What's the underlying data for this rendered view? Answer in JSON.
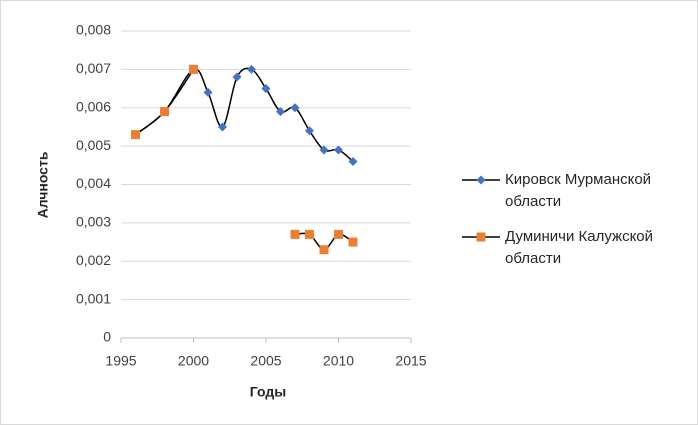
{
  "chart_data": {
    "type": "scatter",
    "xlabel": "Годы",
    "ylabel": "Алчность",
    "xlim": [
      1995,
      2015
    ],
    "xticks": [
      1995,
      2000,
      2005,
      2010,
      2015
    ],
    "ylim": [
      0,
      0.008
    ],
    "yticks": [
      0,
      {
        "value": 0.001,
        "label": "0,001"
      },
      {
        "value": 0.002,
        "label": "0,002"
      },
      {
        "value": 0.003,
        "label": "0,003"
      },
      {
        "value": 0.004,
        "label": "0,004"
      },
      {
        "value": 0.005,
        "label": "0,005"
      },
      {
        "value": 0.006,
        "label": "0,006"
      },
      {
        "value": 0.007,
        "label": "0,007"
      },
      {
        "value": 0.008,
        "label": "0,008"
      }
    ],
    "grid": true,
    "legend": "right",
    "series": [
      {
        "name": "Кировск Мурманской области",
        "color": "#4472c4",
        "marker": "diamond",
        "x": [
          1996,
          1998,
          2000,
          2001,
          2002,
          2003,
          2004,
          2005,
          2006,
          2007,
          2008,
          2009,
          2010,
          2011
        ],
        "values": [
          0.0053,
          0.0059,
          0.007,
          0.0064,
          0.0055,
          0.0068,
          0.007,
          0.0065,
          0.0059,
          0.006,
          0.0054,
          0.0049,
          0.0049,
          0.0046
        ]
      },
      {
        "name": "Думиничи Калужской области",
        "color": "#ed7d31",
        "marker": "square",
        "x": [
          1996,
          1998,
          2000,
          2007,
          2008,
          2009,
          2010,
          2011
        ],
        "values": [
          0.0053,
          0.0059,
          0.007,
          0.0027,
          0.0027,
          0.0023,
          0.0027,
          0.0025
        ]
      }
    ]
  }
}
